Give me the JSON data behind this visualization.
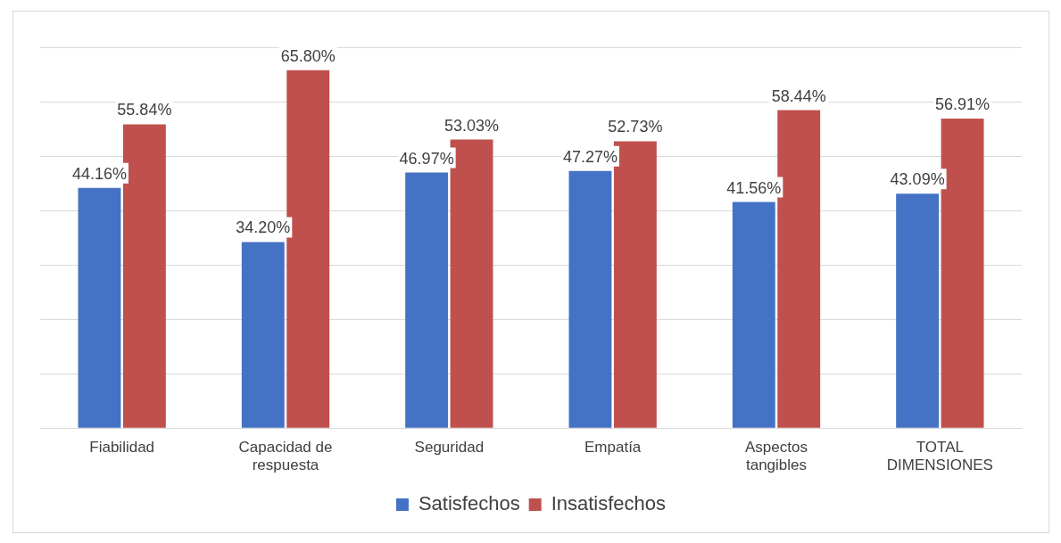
{
  "chart_data": {
    "type": "bar",
    "categories": [
      "Fiabilidad",
      "Capacidad de respuesta",
      "Seguridad",
      "Empatía",
      "Aspectos tangibles",
      "TOTAL DIMENSIONES"
    ],
    "series": [
      {
        "name": "Satisfechos",
        "color": "#4472c4",
        "values": [
          44.16,
          34.2,
          46.97,
          47.27,
          41.56,
          43.09
        ],
        "value_labels": [
          "44.16%",
          "34.20%",
          "46.97%",
          "47.27%",
          "41.56%",
          "43.09%"
        ]
      },
      {
        "name": "Insatisfechos",
        "color": "#c0504d",
        "values": [
          55.84,
          65.8,
          53.03,
          52.73,
          58.44,
          56.91
        ],
        "value_labels": [
          "55.84%",
          "65.80%",
          "53.03%",
          "52.73%",
          "58.44%",
          "56.91%"
        ]
      }
    ],
    "ylim": [
      0,
      70
    ],
    "yticks": [
      {
        "value": 0,
        "label": null
      },
      {
        "value": 10,
        "label": null
      },
      {
        "value": 20,
        "label": null
      },
      {
        "value": 30,
        "label": null
      },
      {
        "value": 40,
        "label": null
      },
      {
        "value": 50,
        "label": null
      },
      {
        "value": 60,
        "label": null
      },
      {
        "value": 70,
        "label": null
      }
    ],
    "grid": "y",
    "legend": "bottom",
    "tick_labels": "x"
  }
}
